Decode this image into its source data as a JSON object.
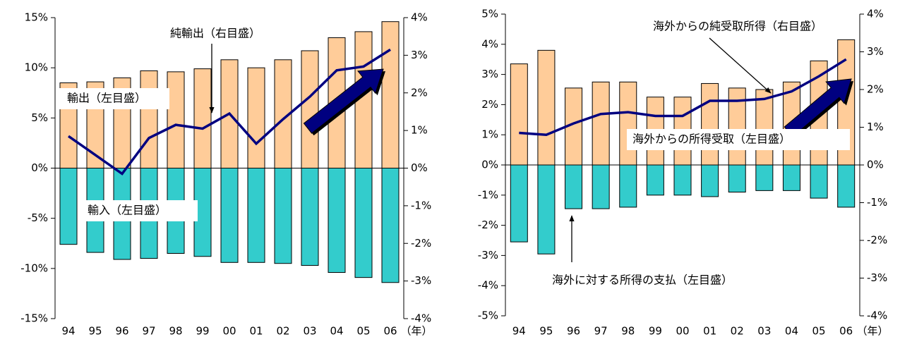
{
  "chart_data": [
    {
      "type": "bar",
      "categories": [
        "94",
        "95",
        "96",
        "97",
        "98",
        "99",
        "00",
        "01",
        "02",
        "03",
        "04",
        "05",
        "06"
      ],
      "x_label": "（年）",
      "series": [
        {
          "name": "輸出（左目盛）",
          "color": "#FFCC99",
          "values": [
            8.5,
            8.6,
            9.0,
            9.7,
            9.6,
            9.9,
            10.8,
            10.0,
            10.8,
            11.7,
            13.0,
            13.6,
            14.6
          ]
        },
        {
          "name": "輸入（左目盛）",
          "color": "#33CCCC",
          "values": [
            -7.6,
            -8.4,
            -9.1,
            -9.0,
            -8.5,
            -8.8,
            -9.4,
            -9.4,
            -9.5,
            -9.7,
            -10.4,
            -10.9,
            -11.4
          ]
        },
        {
          "name": "純輸出（右目盛）",
          "color": "#000080",
          "type": "line",
          "axis": "y2",
          "values": [
            0.85,
            0.35,
            -0.15,
            0.8,
            1.15,
            1.05,
            1.45,
            0.65,
            1.3,
            1.9,
            2.6,
            2.7,
            3.15
          ]
        }
      ],
      "ylim": [
        -15,
        15
      ],
      "yticks": [
        {
          "value": 15,
          "label": "15%"
        },
        {
          "value": 10,
          "label": "10%"
        },
        {
          "value": 5,
          "label": "5%"
        },
        {
          "value": 0,
          "label": "0%"
        },
        {
          "value": -5,
          "label": "-5%"
        },
        {
          "value": -10,
          "label": "-10%"
        },
        {
          "value": -15,
          "label": "-15%"
        }
      ],
      "y2lim": [
        -4,
        4
      ],
      "y2ticks": [
        {
          "value": 4,
          "label": "4%"
        },
        {
          "value": 3,
          "label": "3%"
        },
        {
          "value": 2,
          "label": "2%"
        },
        {
          "value": 1,
          "label": "1%"
        },
        {
          "value": 0,
          "label": "0%"
        },
        {
          "value": -1,
          "label": "-1%"
        },
        {
          "value": -2,
          "label": "-2%"
        },
        {
          "value": -3,
          "label": "-3%"
        },
        {
          "value": -4,
          "label": "-4%"
        }
      ]
    },
    {
      "type": "bar",
      "categories": [
        "94",
        "95",
        "96",
        "97",
        "98",
        "99",
        "00",
        "01",
        "02",
        "03",
        "04",
        "05",
        "06"
      ],
      "x_label": "（年）",
      "series": [
        {
          "name": "海外からの所得受取（左目盛）",
          "color": "#FFCC99",
          "values": [
            3.35,
            3.8,
            2.55,
            2.75,
            2.75,
            2.25,
            2.25,
            2.7,
            2.55,
            2.5,
            2.75,
            3.45,
            4.15
          ]
        },
        {
          "name": "海外に対する所得の支払（左目盛）",
          "color": "#33CCCC",
          "values": [
            -2.55,
            -2.95,
            -1.45,
            -1.45,
            -1.4,
            -1.0,
            -1.0,
            -1.05,
            -0.9,
            -0.85,
            -0.85,
            -1.1,
            -1.4
          ]
        },
        {
          "name": "海外からの純受取所得（右目盛）",
          "color": "#000080",
          "type": "line",
          "axis": "y2",
          "values": [
            0.85,
            0.8,
            1.1,
            1.35,
            1.4,
            1.3,
            1.3,
            1.7,
            1.7,
            1.75,
            1.95,
            2.35,
            2.8
          ]
        }
      ],
      "ylim": [
        -5,
        5
      ],
      "yticks": [
        {
          "value": 5,
          "label": "5%"
        },
        {
          "value": 4,
          "label": "4%"
        },
        {
          "value": 3,
          "label": "3%"
        },
        {
          "value": 2,
          "label": "2%"
        },
        {
          "value": 1,
          "label": "1%"
        },
        {
          "value": 0,
          "label": "0%"
        },
        {
          "value": -1,
          "label": "-1%"
        },
        {
          "value": -2,
          "label": "-2%"
        },
        {
          "value": -3,
          "label": "-3%"
        },
        {
          "value": -4,
          "label": "-4%"
        },
        {
          "value": -5,
          "label": "-5%"
        }
      ],
      "y2lim": [
        -4,
        4
      ],
      "y2ticks": [
        {
          "value": 4,
          "label": "4%"
        },
        {
          "value": 3,
          "label": "3%"
        },
        {
          "value": 2,
          "label": "2%"
        },
        {
          "value": 1,
          "label": "1%"
        },
        {
          "value": 0,
          "label": "0%"
        },
        {
          "value": -1,
          "label": "-1%"
        },
        {
          "value": -2,
          "label": "-2%"
        },
        {
          "value": -3,
          "label": "-3%"
        },
        {
          "value": -4,
          "label": "-4%"
        }
      ]
    }
  ]
}
